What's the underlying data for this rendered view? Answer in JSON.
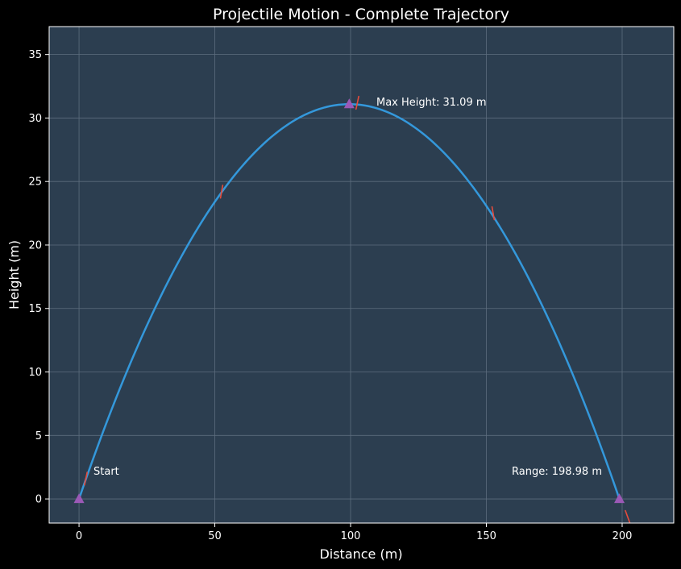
{
  "chart_data": {
    "type": "line",
    "title": "Projectile Motion - Complete Trajectory",
    "xlabel": "Distance (m)",
    "ylabel": "Height (m)",
    "xlim": [
      -11,
      219
    ],
    "ylim": [
      -1.9,
      37.2
    ],
    "xticks": [
      0,
      50,
      100,
      150,
      200
    ],
    "yticks": [
      0,
      5,
      10,
      15,
      20,
      25,
      30,
      35
    ],
    "grid": true,
    "series": [
      {
        "type": "parabola",
        "x_start": 0,
        "x_end": 198.98,
        "y_peak": 31.09,
        "color": "#3498db"
      }
    ],
    "markers": [
      {
        "x": 0,
        "y": 0
      },
      {
        "x": 99.49,
        "y": 31.09
      },
      {
        "x": 198.98,
        "y": 0
      }
    ],
    "velocity_arrows": [
      {
        "x": 2.5,
        "y": 1.6,
        "angle_deg": 78
      },
      {
        "x": 52.5,
        "y": 24.2,
        "angle_deg": 80
      },
      {
        "x": 102.5,
        "y": 31.2,
        "angle_deg": 78
      },
      {
        "x": 152.5,
        "y": 22.5,
        "angle_deg": 100
      },
      {
        "x": 202,
        "y": -1.4,
        "angle_deg": 110
      }
    ],
    "annotations": [
      {
        "key": "start",
        "text": "Start"
      },
      {
        "key": "max",
        "text": "Max Height: 31.09 m"
      },
      {
        "key": "range",
        "text": "Range: 198.98 m"
      }
    ],
    "colors": {
      "figure_bg": "#000000",
      "axes_bg": "#2c3e50",
      "grid": "#5d6d7e",
      "marker": "#9b59b6",
      "arrow": "#e74c3c",
      "text": "#ffffff"
    }
  }
}
